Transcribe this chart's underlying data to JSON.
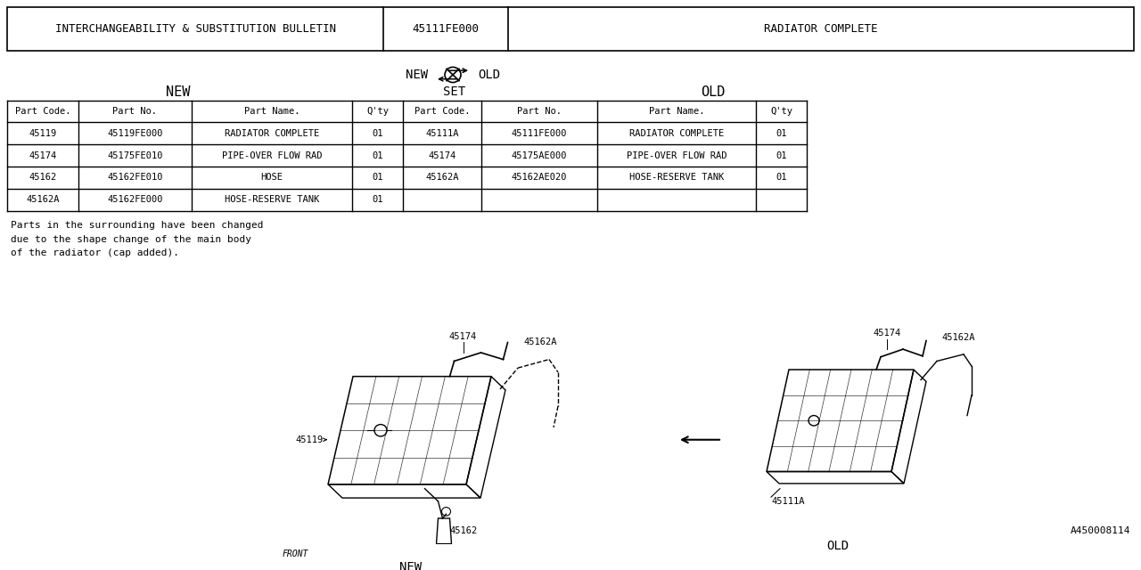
{
  "bg_color": "#ffffff",
  "header_row": [
    "INTERCHANGEABILITY & SUBSTITUTION BULLETIN",
    "45111FE000",
    "RADIATOR COMPLETE"
  ],
  "table_headers": [
    "Part Code.",
    "Part No.",
    "Part Name.",
    "Q'ty",
    "Part Code.",
    "Part No.",
    "Part Name.",
    "Q'ty"
  ],
  "new_rows": [
    [
      "45119",
      "45119FE000",
      "RADIATOR COMPLETE",
      "01"
    ],
    [
      "45174",
      "45175FE010",
      "PIPE-OVER FLOW RAD",
      "01"
    ],
    [
      "45162",
      "45162FE010",
      "HOSE",
      "01"
    ],
    [
      "45162A",
      "45162FE000",
      "HOSE-RESERVE TANK",
      "01"
    ]
  ],
  "old_rows": [
    [
      "45111A",
      "45111FE000",
      "RADIATOR COMPLETE",
      "01"
    ],
    [
      "45174",
      "45175AE000",
      "PIPE-OVER FLOW RAD",
      "01"
    ],
    [
      "45162A",
      "45162AE020",
      "HOSE-RESERVE TANK",
      "01"
    ],
    [
      "",
      "",
      "",
      ""
    ]
  ],
  "note_text": "Parts in the surrounding have been changed\ndue to the shape change of the main body\nof the radiator (cap added).",
  "footer_text": "A450008114",
  "font_name": "monospace"
}
